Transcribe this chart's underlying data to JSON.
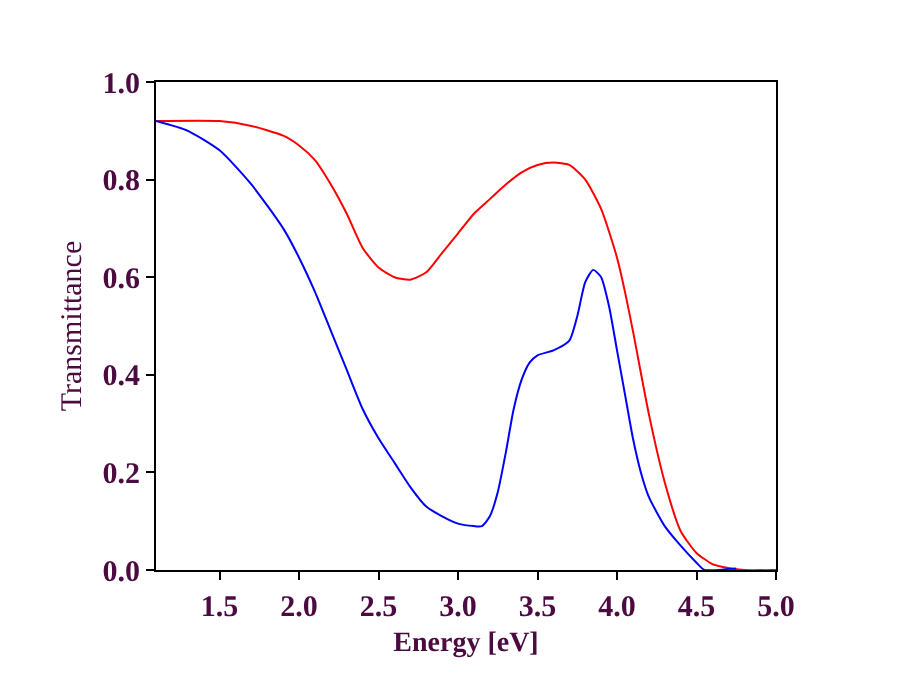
{
  "chart_data": {
    "type": "line",
    "xlabel": "Energy [eV]",
    "ylabel": "Transmittance",
    "xlim": [
      1.1,
      5.0
    ],
    "xticks": [
      1.5,
      {
        "value": 2,
        "label": "2.0"
      },
      2.5,
      {
        "value": 3,
        "label": "3.0"
      },
      3.5,
      {
        "value": 4,
        "label": "4.0"
      },
      4.5,
      {
        "value": 5,
        "label": "5.0"
      }
    ],
    "ylim": [
      0.0,
      1.0
    ],
    "yticks": [
      {
        "value": 0,
        "label": "0.0"
      },
      0.2,
      0.4,
      0.6,
      0.8,
      {
        "value": 1,
        "label": "1.0"
      }
    ],
    "marker": "none",
    "line_style": "solid",
    "series": [
      {
        "color": "#ff0000",
        "x": [
          1.1,
          1.5,
          1.7,
          1.9,
          2.0,
          2.1,
          2.2,
          2.3,
          2.4,
          2.5,
          2.6,
          2.7,
          2.8,
          2.9,
          3.0,
          3.1,
          3.2,
          3.3,
          3.4,
          3.5,
          3.6,
          3.7,
          3.8,
          3.9,
          4.0,
          4.05,
          4.1,
          4.2,
          4.3,
          4.4,
          4.5,
          4.6,
          4.7,
          4.8,
          5.0
        ],
        "values": [
          0.92,
          0.92,
          0.91,
          0.89,
          0.87,
          0.84,
          0.79,
          0.73,
          0.66,
          0.62,
          0.6,
          0.595,
          0.61,
          0.65,
          0.69,
          0.73,
          0.76,
          0.79,
          0.815,
          0.83,
          0.835,
          0.83,
          0.8,
          0.74,
          0.64,
          0.57,
          0.49,
          0.32,
          0.18,
          0.08,
          0.035,
          0.012,
          0.004,
          0,
          0
        ]
      },
      {
        "color": "#0000ff",
        "x": [
          1.1,
          1.3,
          1.5,
          1.7,
          1.9,
          2.0,
          2.1,
          2.2,
          2.3,
          2.4,
          2.5,
          2.6,
          2.7,
          2.8,
          2.9,
          3.0,
          3.1,
          3.15,
          3.2,
          3.25,
          3.3,
          3.35,
          3.4,
          3.45,
          3.5,
          3.6,
          3.7,
          3.75,
          3.8,
          3.85,
          3.9,
          3.95,
          4.0,
          4.05,
          4.1,
          4.15,
          4.2,
          4.3,
          4.4,
          4.5,
          4.55,
          4.7,
          4.75
        ],
        "values": [
          0.92,
          0.9,
          0.86,
          0.79,
          0.7,
          0.64,
          0.57,
          0.49,
          0.41,
          0.33,
          0.27,
          0.22,
          0.17,
          0.13,
          0.11,
          0.095,
          0.09,
          0.09,
          0.11,
          0.16,
          0.24,
          0.33,
          0.39,
          0.425,
          0.44,
          0.45,
          0.47,
          0.52,
          0.59,
          0.615,
          0.6,
          0.54,
          0.45,
          0.36,
          0.27,
          0.2,
          0.15,
          0.09,
          0.05,
          0.015,
          0,
          0.002,
          0.003
        ]
      }
    ]
  }
}
